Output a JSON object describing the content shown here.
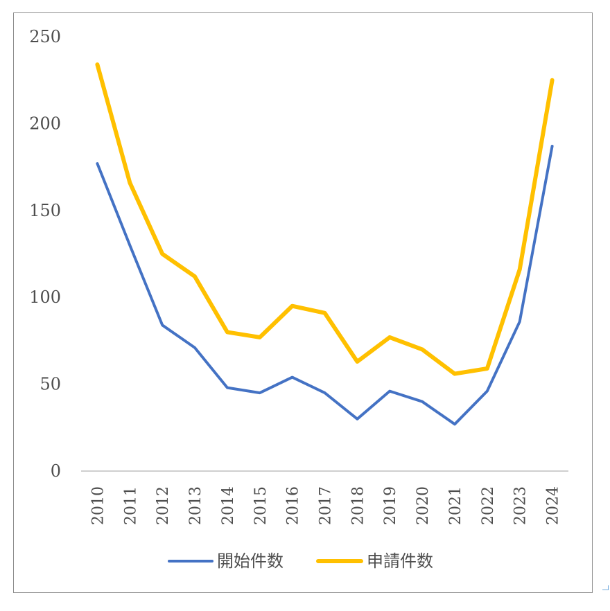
{
  "chart_data": {
    "type": "line",
    "x": [
      "2010",
      "2011",
      "2012",
      "2013",
      "2014",
      "2015",
      "2016",
      "2017",
      "2018",
      "2019",
      "2020",
      "2021",
      "2022",
      "2023",
      "2024"
    ],
    "ylim": [
      0,
      250
    ],
    "yticks": [
      0,
      50,
      100,
      150,
      200,
      250
    ],
    "grid": false,
    "legend_position": "bottom",
    "series": [
      {
        "name": "開始件数",
        "color": "#4472c4",
        "values": [
          177,
          130,
          84,
          71,
          48,
          45,
          54,
          45,
          30,
          46,
          40,
          27,
          46,
          86,
          187
        ]
      },
      {
        "name": "申請件数",
        "color": "#ffc000",
        "values": [
          234,
          166,
          125,
          112,
          80,
          77,
          95,
          91,
          63,
          77,
          70,
          56,
          59,
          116,
          225
        ]
      }
    ]
  }
}
